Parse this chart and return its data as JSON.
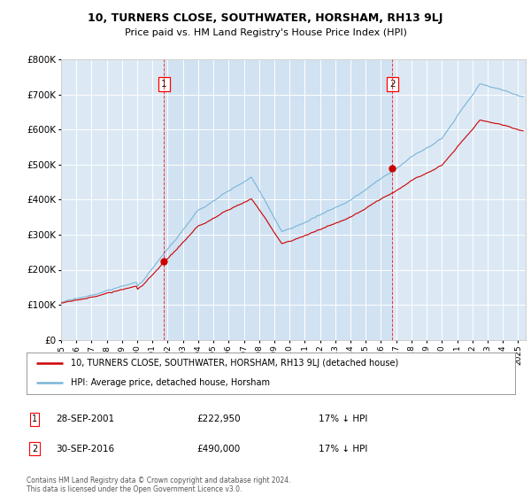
{
  "title": "10, TURNERS CLOSE, SOUTHWATER, HORSHAM, RH13 9LJ",
  "subtitle": "Price paid vs. HM Land Registry's House Price Index (HPI)",
  "ylim": [
    0,
    800000
  ],
  "yticks": [
    0,
    100000,
    200000,
    300000,
    400000,
    500000,
    600000,
    700000,
    800000
  ],
  "ytick_labels": [
    "£0",
    "£100K",
    "£200K",
    "£300K",
    "£400K",
    "£500K",
    "£600K",
    "£700K",
    "£800K"
  ],
  "sale1_date": 2001.75,
  "sale1_price": 222950,
  "sale1_label": "28-SEP-2001",
  "sale1_pct": "17% ↓ HPI",
  "sale2_date": 2016.75,
  "sale2_price": 490000,
  "sale2_label": "30-SEP-2016",
  "sale2_pct": "17% ↓ HPI",
  "hpi_color": "#7ab5d8",
  "price_color": "#cc0000",
  "background_color": "#dce9f5",
  "highlight_color": "#c8ddf0",
  "grid_color": "#ffffff",
  "legend_label_price": "10, TURNERS CLOSE, SOUTHWATER, HORSHAM, RH13 9LJ (detached house)",
  "legend_label_hpi": "HPI: Average price, detached house, Horsham",
  "footer": "Contains HM Land Registry data © Crown copyright and database right 2024.\nThis data is licensed under the Open Government Licence v3.0.",
  "xlim_start": 1995.0,
  "xlim_end": 2025.5,
  "ratio": 0.83
}
